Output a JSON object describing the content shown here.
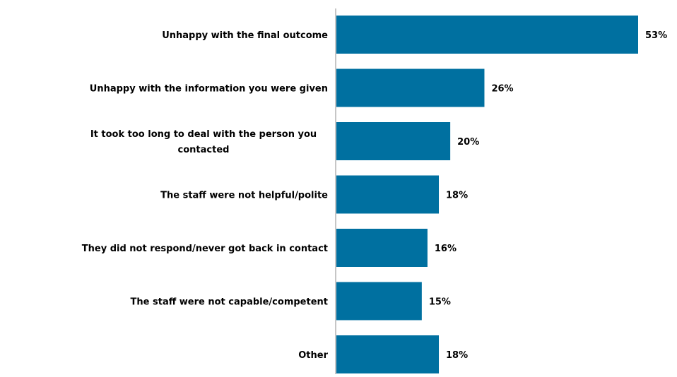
{
  "chart_data": {
    "type": "bar",
    "orientation": "horizontal",
    "title": "",
    "xlabel": "",
    "ylabel": "",
    "categories": [
      [
        "Unhappy with the final outcome"
      ],
      [
        "Unhappy with the information you were given"
      ],
      [
        "It took too long to deal with the person you",
        "contacted"
      ],
      [
        "The staff were not helpful/polite"
      ],
      [
        "They did not respond/never got back in contact"
      ],
      [
        "The staff were not capable/competent"
      ],
      [
        "Other"
      ]
    ],
    "values": [
      53,
      26,
      20,
      18,
      16,
      15,
      18
    ],
    "value_labels": [
      "53%",
      "26%",
      "20%",
      "18%",
      "16%",
      "15%",
      "18%"
    ],
    "xlim": [
      0,
      53
    ],
    "grid": false,
    "legend": "none",
    "colors": {
      "bar": "#0070a0",
      "axis": "#8c8c8c",
      "text": "#000000"
    }
  }
}
